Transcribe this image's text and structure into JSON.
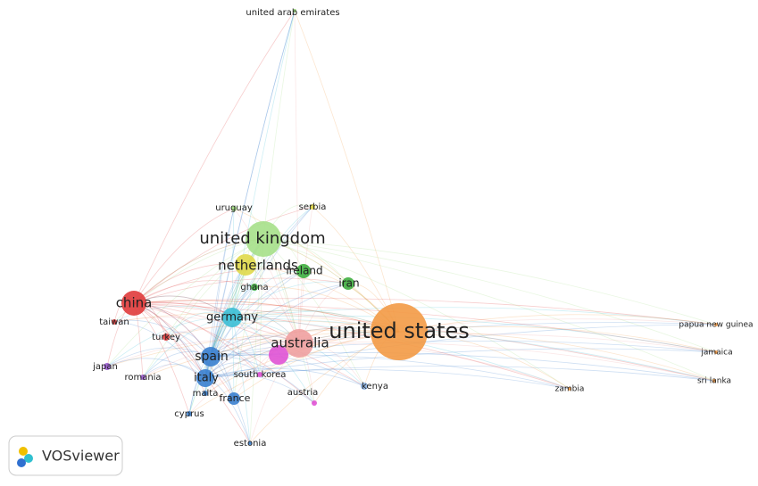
{
  "nodes": [
    {
      "label": "united arab emirates"
    },
    {
      "label": "uruguay"
    },
    {
      "label": "serbia"
    },
    {
      "label": "united kingdom"
    },
    {
      "label": "netherlands"
    },
    {
      "label": "ireland"
    },
    {
      "label": "ghana"
    },
    {
      "label": "iran"
    },
    {
      "label": "china"
    },
    {
      "label": "taiwan"
    },
    {
      "label": "turkey"
    },
    {
      "label": "germany"
    },
    {
      "label": "australia"
    },
    {
      "label": "united states"
    },
    {
      "label": "japan"
    },
    {
      "label": "spain"
    },
    {
      "label": "romania"
    },
    {
      "label": "italy"
    },
    {
      "label": "malta"
    },
    {
      "label": "france"
    },
    {
      "label": "south korea"
    },
    {
      "label": "austria"
    },
    {
      "label": "kenya"
    },
    {
      "label": "cyprus"
    },
    {
      "label": "estonia"
    },
    {
      "label": "papua new guinea"
    },
    {
      "label": "jamaica"
    },
    {
      "label": "sri lanka"
    },
    {
      "label": "zambia"
    }
  ],
  "logo": {
    "text": "VOSviewer"
  }
}
